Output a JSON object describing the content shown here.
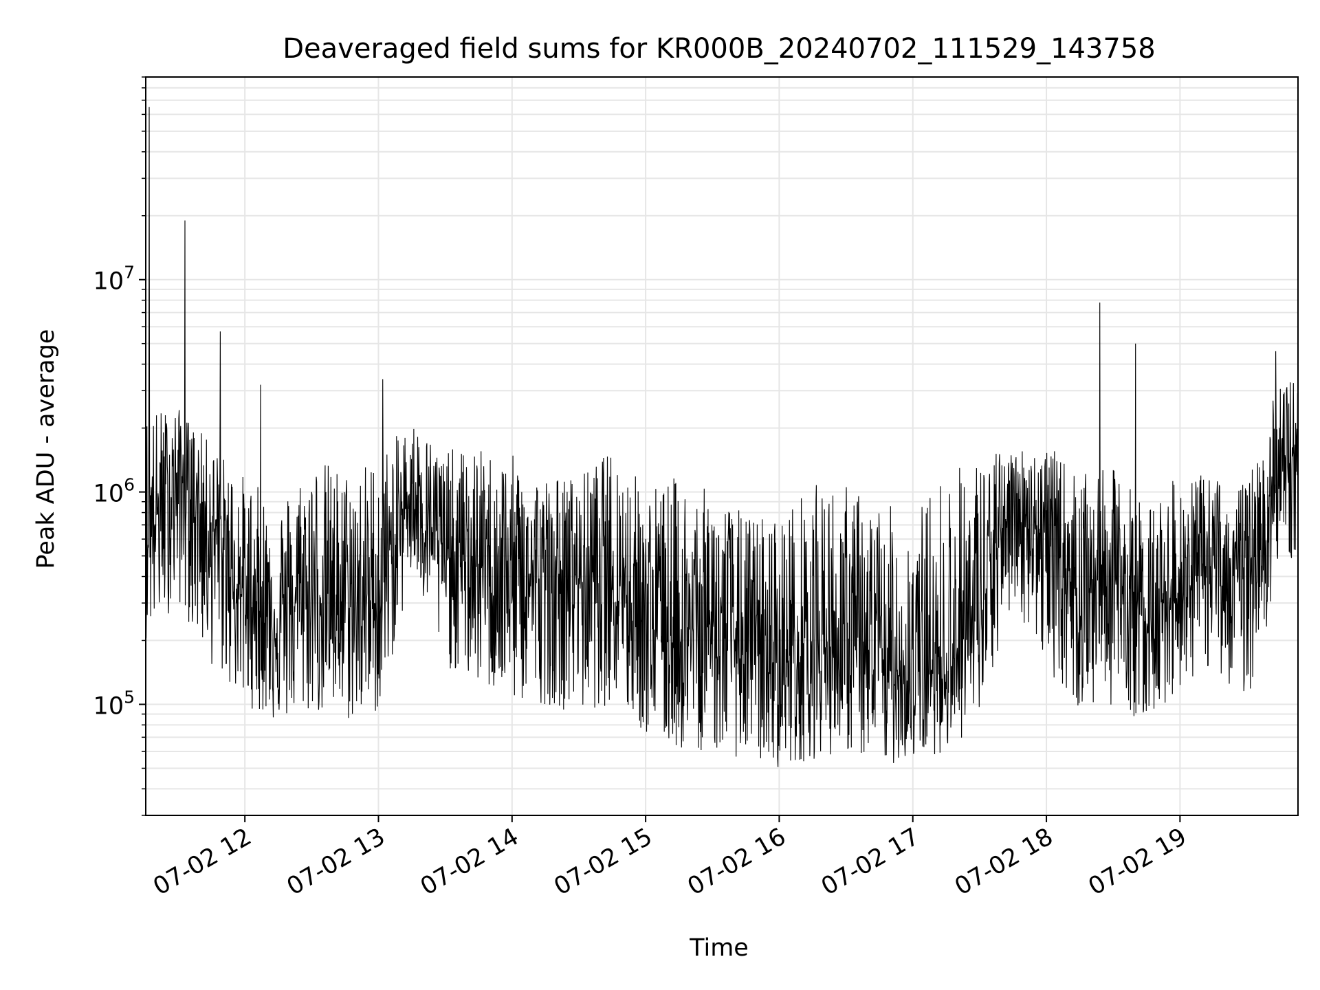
{
  "chart_data": {
    "type": "line",
    "title": "Deaveraged field sums for KR000B_20240702_111529_143758",
    "xlabel": "Time",
    "ylabel": "Peak ADU - average",
    "yscale": "log",
    "ylim": [
      30000,
      90000000
    ],
    "xlim": [
      "2024-07-02 11:15:29",
      "2024-07-02 19:53:00"
    ],
    "grid": true,
    "x_ticks": [
      {
        "time": "2024-07-02 12:00",
        "label": "07-02 12"
      },
      {
        "time": "2024-07-02 13:00",
        "label": "07-02 13"
      },
      {
        "time": "2024-07-02 14:00",
        "label": "07-02 14"
      },
      {
        "time": "2024-07-02 15:00",
        "label": "07-02 15"
      },
      {
        "time": "2024-07-02 16:00",
        "label": "07-02 16"
      },
      {
        "time": "2024-07-02 17:00",
        "label": "07-02 17"
      },
      {
        "time": "2024-07-02 18:00",
        "label": "07-02 18"
      },
      {
        "time": "2024-07-02 19:00",
        "label": "07-02 19"
      }
    ],
    "y_ticks": [
      {
        "value": 100000,
        "base": "10",
        "exp": "5"
      },
      {
        "value": 1000000,
        "base": "10",
        "exp": "6"
      },
      {
        "value": 10000000,
        "base": "10",
        "exp": "7"
      }
    ],
    "line_color": "#000000",
    "series": [
      {
        "x": [
          "2024-07-02 11:15",
          "2024-07-02 11:30",
          "2024-07-02 11:45",
          "2024-07-02 12:00",
          "2024-07-02 12:15",
          "2024-07-02 12:30",
          "2024-07-02 12:45",
          "2024-07-02 13:00",
          "2024-07-02 13:15",
          "2024-07-02 13:30",
          "2024-07-02 13:45",
          "2024-07-02 14:00",
          "2024-07-02 14:15",
          "2024-07-02 14:30",
          "2024-07-02 14:45",
          "2024-07-02 15:00",
          "2024-07-02 15:15",
          "2024-07-02 15:30",
          "2024-07-02 15:45",
          "2024-07-02 16:00",
          "2024-07-02 16:15",
          "2024-07-02 16:30",
          "2024-07-02 16:45",
          "2024-07-02 17:00",
          "2024-07-02 17:15",
          "2024-07-02 17:30",
          "2024-07-02 17:45",
          "2024-07-02 18:00",
          "2024-07-02 18:15",
          "2024-07-02 18:30",
          "2024-07-02 18:45",
          "2024-07-02 19:00",
          "2024-07-02 19:15",
          "2024-07-02 19:30",
          "2024-07-02 19:45",
          "2024-07-02 19:52"
        ],
        "values": [
          600000,
          1200000,
          700000,
          300000,
          250000,
          350000,
          300000,
          300000,
          1100000,
          500000,
          450000,
          380000,
          400000,
          400000,
          450000,
          250000,
          200000,
          250000,
          180000,
          150000,
          200000,
          180000,
          150000,
          130000,
          150000,
          250000,
          1000000,
          600000,
          350000,
          400000,
          250000,
          350000,
          450000,
          400000,
          1200000,
          1500000
        ],
        "noise_low": [
          200000,
          300000,
          150000,
          100000,
          80000,
          90000,
          80000,
          90000,
          400000,
          150000,
          120000,
          100000,
          100000,
          90000,
          100000,
          70000,
          60000,
          60000,
          55000,
          50000,
          55000,
          60000,
          50000,
          55000,
          60000,
          80000,
          300000,
          150000,
          90000,
          100000,
          80000,
          120000,
          150000,
          100000,
          400000,
          500000
        ],
        "noise_high": [
          2500000,
          2500000,
          1700000,
          1200000,
          900000,
          1500000,
          1300000,
          1500000,
          2200000,
          1600000,
          1600000,
          1500000,
          1200000,
          1200000,
          1600000,
          1100000,
          1200000,
          1000000,
          800000,
          800000,
          1100000,
          1100000,
          900000,
          800000,
          1300000,
          1500000,
          1600000,
          1700000,
          1200000,
          1300000,
          900000,
          1200000,
          1200000,
          1100000,
          3500000,
          3500000
        ],
        "spikes": [
          {
            "time": "2024-07-02 11:17",
            "value": 65000000
          },
          {
            "time": "2024-07-02 11:33",
            "value": 19000000
          },
          {
            "time": "2024-07-02 11:49",
            "value": 5700000
          },
          {
            "time": "2024-07-02 12:07",
            "value": 3200000
          },
          {
            "time": "2024-07-02 13:02",
            "value": 3400000
          },
          {
            "time": "2024-07-02 18:24",
            "value": 7800000
          },
          {
            "time": "2024-07-02 18:40",
            "value": 5000000
          },
          {
            "time": "2024-07-02 19:43",
            "value": 4600000
          }
        ]
      }
    ]
  }
}
